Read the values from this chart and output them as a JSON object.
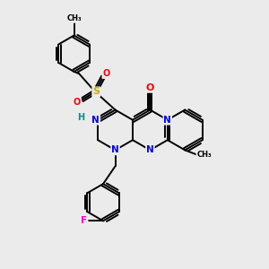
{
  "background_color": "#ebebeb",
  "bond_color": "#000000",
  "atom_colors": {
    "N": "#0000ff",
    "O": "#ff0000",
    "S": "#ccaa00",
    "F": "#ff00cc",
    "H": "#009090",
    "C": "#000000"
  },
  "figsize": [
    3.0,
    3.0
  ],
  "dpi": 100
}
